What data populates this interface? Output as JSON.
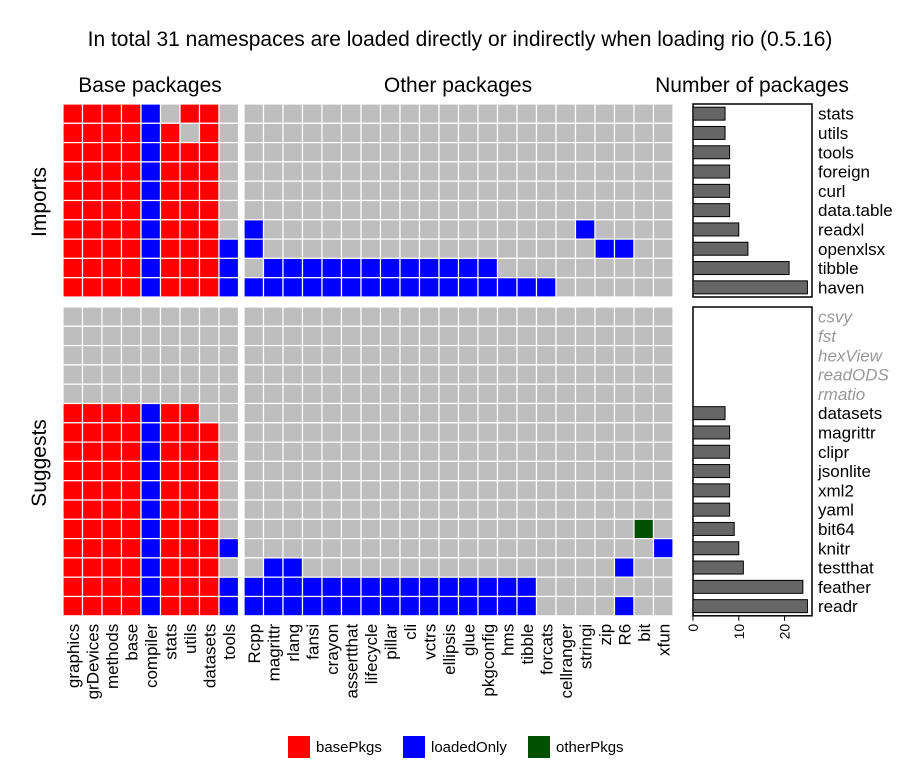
{
  "chart_data": {
    "type": "heatmap",
    "title": "In total 31 namespaces are loaded directly or indirectly when loading rio (0.5.16)",
    "panel_titles": {
      "base": "Base packages",
      "other": "Other packages",
      "count": "Number of packages"
    },
    "facets": [
      "Imports",
      "Suggests"
    ],
    "base_packages": [
      "graphics",
      "grDevices",
      "methods",
      "base",
      "compiler",
      "stats",
      "utils",
      "datasets",
      "tools"
    ],
    "other_packages": [
      "Rcpp",
      "magrittr",
      "rlang",
      "fansi",
      "crayon",
      "assertthat",
      "lifecycle",
      "pillar",
      "cli",
      "vctrs",
      "ellipsis",
      "glue",
      "pkgconfig",
      "hms",
      "tibble",
      "forcats",
      "cellranger",
      "stringi",
      "zip",
      "R6",
      "bit",
      "xfun"
    ],
    "imports": [
      "stats",
      "utils",
      "tools",
      "foreign",
      "curl",
      "data.table",
      "readxl",
      "openxlsx",
      "tibble",
      "haven"
    ],
    "imports_base": [
      "RRRRBGRRG",
      "RRRRBRGRG",
      "RRRRBRRRG",
      "RRRRBRRRG",
      "RRRRBRRRG",
      "RRRRBRRRG",
      "RRRRBRRRG",
      "RRRRBRRRB",
      "RRRRBRRRB",
      "RRRRBRRRB"
    ],
    "imports_other": [
      "GGGGGGGGGGGGGGGGGGGGGG",
      "GGGGGGGGGGGGGGGGGGGGGG",
      "GGGGGGGGGGGGGGGGGGGGGG",
      "GGGGGGGGGGGGGGGGGGGGGG",
      "GGGGGGGGGGGGGGGGGGGGGG",
      "GGGGGGGGGGGGGGGGGGGGGG",
      "BGGGGGGGGGGGGGGGGBGGGG",
      "BGGGGGGGGGGGGGGGGGBBGG",
      "GBBBBBBBBBBBBGGGGGGGGG",
      "BBBBBBBBBBBBBBBBGGGGGG"
    ],
    "suggests": [
      "csvy",
      "fst",
      "hexView",
      "readODS",
      "rmatio",
      "datasets",
      "magrittr",
      "clipr",
      "jsonlite",
      "xml2",
      "yaml",
      "bit64",
      "knitr",
      "testthat",
      "feather",
      "readr"
    ],
    "suggests_installed": [
      false,
      false,
      false,
      false,
      false,
      true,
      true,
      true,
      true,
      true,
      true,
      true,
      true,
      true,
      true,
      true
    ],
    "suggests_base": [
      "GGGGGGGGG",
      "GGGGGGGGG",
      "GGGGGGGGG",
      "GGGGGGGGG",
      "GGGGGGGGG",
      "RRRRBRRGG",
      "RRRRBRRRG",
      "RRRRBRRRG",
      "RRRRBRRRG",
      "RRRRBRRRG",
      "RRRRBRRRG",
      "RRRRBRRRG",
      "RRRRBRRRB",
      "RRRRBRRRG",
      "RRRRBRRRB",
      "RRRRBRRRB"
    ],
    "suggests_other": [
      "GGGGGGGGGGGGGGGGGGGGGG",
      "GGGGGGGGGGGGGGGGGGGGGG",
      "GGGGGGGGGGGGGGGGGGGGGG",
      "GGGGGGGGGGGGGGGGGGGGGG",
      "GGGGGGGGGGGGGGGGGGGGGG",
      "GGGGGGGGGGGGGGGGGGGGGG",
      "GGGGGGGGGGGGGGGGGGGGGG",
      "GGGGGGGGGGGGGGGGGGGGGG",
      "GGGGGGGGGGGGGGGGGGGGGG",
      "GGGGGGGGGGGGGGGGGGGGGG",
      "GGGGGGGGGGGGGGGGGGGGGG",
      "GGGGGGGGGGGGGGGGGGGGDG",
      "GGGGGGGGGGGGGGGGGGGGGB",
      "GBBGGGGGGGGGGGGGGGGBGG",
      "BBBBBBBBBBBBBBBGGGGGGG",
      "BBBBBBBBBBBBBBBGGGGBGG"
    ],
    "imports_counts": [
      7,
      7,
      8,
      8,
      8,
      8,
      10,
      12,
      21,
      25
    ],
    "suggests_counts": [
      0,
      0,
      0,
      0,
      0,
      7,
      8,
      8,
      8,
      8,
      8,
      9,
      10,
      11,
      24,
      25
    ],
    "count_axis": {
      "xlim": [
        0,
        26
      ],
      "ticks": [
        0,
        10,
        20
      ]
    },
    "cell_colors": {
      "R": "#ff0000",
      "B": "#0000ff",
      "D": "#005000",
      "G": "#bebebe"
    },
    "bar_color": "#666666",
    "missing_label_color": "#999999",
    "legend": [
      {
        "key": "R",
        "label": "basePkgs",
        "color": "#ff0000"
      },
      {
        "key": "B",
        "label": "loadedOnly",
        "color": "#0000ff"
      },
      {
        "key": "D",
        "label": "otherPkgs",
        "color": "#005000"
      }
    ],
    "legend_placement": "bottom"
  }
}
